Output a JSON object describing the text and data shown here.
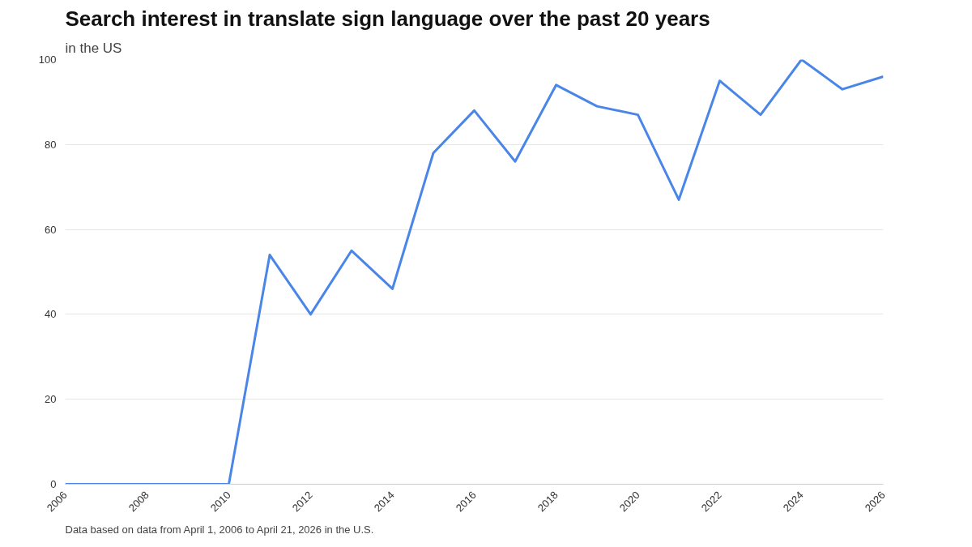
{
  "chart_data": {
    "type": "line",
    "title": "Search interest in translate sign language over the past 20 years",
    "subtitle": "in the US",
    "x": [
      2006,
      2007,
      2008,
      2009,
      2010,
      2011,
      2012,
      2013,
      2014,
      2015,
      2016,
      2017,
      2018,
      2019,
      2020,
      2021,
      2022,
      2023,
      2024,
      2025,
      2026
    ],
    "series": [
      {
        "color": "#4a86e8",
        "values": [
          0,
          0,
          0,
          0,
          0,
          54,
          40,
          55,
          46,
          78,
          88,
          76,
          94,
          89,
          87,
          67,
          95,
          87,
          100,
          93,
          96
        ]
      }
    ],
    "xlim": [
      2006,
      2026
    ],
    "xticks": [
      2006,
      2008,
      2010,
      2012,
      2014,
      2016,
      2018,
      2020,
      2022,
      2024,
      2026
    ],
    "ylim": [
      0,
      100
    ],
    "yticks": [
      0,
      20,
      40,
      60,
      80,
      100
    ],
    "grid": "y",
    "marker": "none",
    "line_style": "solid",
    "annotations": [
      "Data based on data from April 1, 2006 to April 21, 2026 in the U.S."
    ]
  }
}
